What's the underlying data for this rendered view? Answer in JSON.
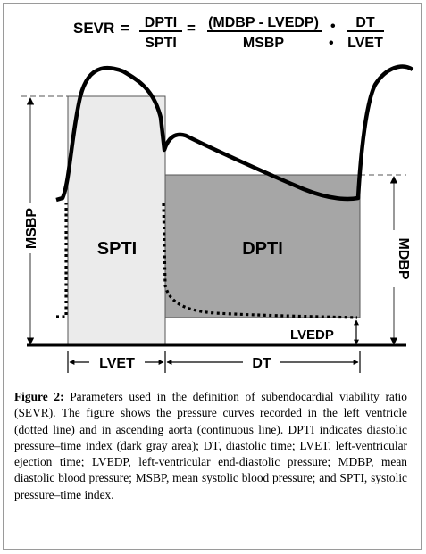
{
  "equation": {
    "lhs": "SEVR",
    "eq1": "=",
    "frac1_num": "DPTI",
    "frac1_den": "SPTI",
    "eq2": "=",
    "frac2_num": "(MDBP - LVEDP)",
    "frac2_den": "MSBP",
    "mult_top": "•",
    "mult_bottom": "•",
    "frac3_num": "DT",
    "frac3_den": "LVET"
  },
  "labels": {
    "spti": "SPTI",
    "dpti": "DPTI",
    "msbp": "MSBP",
    "mdbp": "MDBP",
    "lvedp": "LVEDP",
    "lvet": "LVET",
    "dt": "DT"
  },
  "colors": {
    "spti_fill": "#ebebeb",
    "dpti_fill": "#a6a6a6",
    "curve": "#000000"
  },
  "caption": {
    "prefix": "Figure 2:",
    "text": " Parameters used in the definition of subendocardial viability ratio (SEVR). The figure shows the pressure curves recorded in the left ventricle (dotted line) and in ascending aorta (continuous line). DPTI indicates diastolic pressure–time index (dark gray area); DT, diastolic time; LVET, left-ventricular ejection time; LVEDP, left-ventricular end-diastolic pressure; MDBP, mean diastolic blood pressure; MSBP, mean systolic blood pressure; and SPTI, systolic pressure–time index."
  }
}
